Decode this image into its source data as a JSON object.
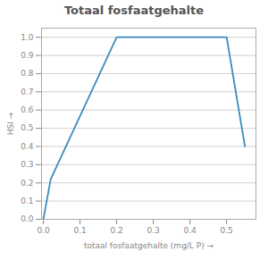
{
  "chart_data": {
    "type": "line",
    "title": "Totaal fosfaatgehalte",
    "xlabel": "totaal fosfaatgehalte (mg/L P)",
    "ylabel": "HSI",
    "x": [
      0.0,
      0.02,
      0.2,
      0.5,
      0.55
    ],
    "values": [
      0.0,
      0.22,
      1.0,
      1.0,
      0.4
    ],
    "color": "#3a8bbf",
    "xlim": [
      -0.005,
      0.58
    ],
    "ylim": [
      0.0,
      1.05
    ],
    "xticks": [
      {
        "value": 0,
        "label": "0.0"
      },
      0.1,
      0.2,
      0.3,
      0.4,
      0.5
    ],
    "yticks": [
      {
        "value": 0,
        "label": "0.0"
      },
      0.1,
      0.2,
      0.3,
      0.4,
      0.5,
      0.6,
      0.7,
      0.8,
      0.9,
      {
        "value": 1,
        "label": "1.0"
      }
    ],
    "grid": true
  }
}
